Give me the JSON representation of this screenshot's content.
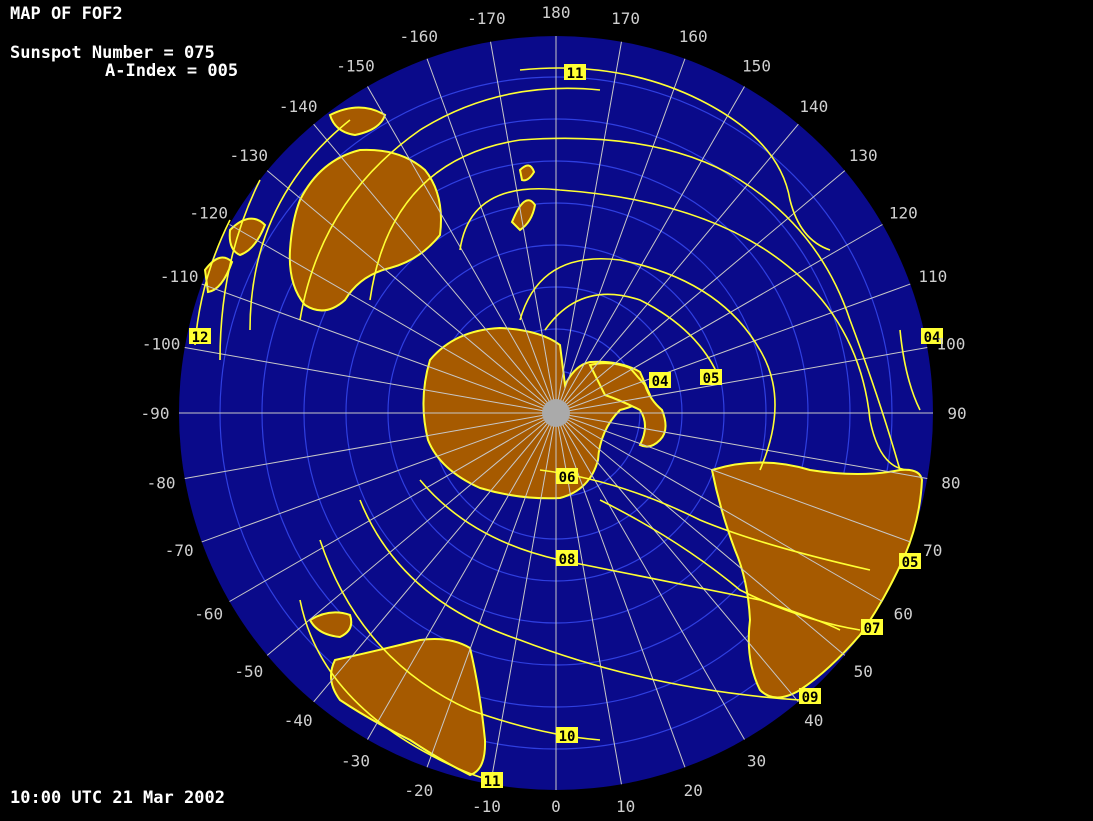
{
  "header": {
    "title": "MAP OF FOF2",
    "sunspot": "Sunspot Number = 075",
    "aindex": "A-Index = 005"
  },
  "timestamp": "10:00 UTC 21 Mar 2002",
  "colors": {
    "background": "#000000",
    "ocean": "#0a0a8a",
    "land": "#a65a00",
    "contour": "#ffff33",
    "grid": "#c8c8c8",
    "label_bg": "#ffff33"
  },
  "projection": "south-polar",
  "longitude_labels": [
    "180",
    "170",
    "160",
    "150",
    "140",
    "130",
    "120",
    "110",
    "100",
    "90",
    "80",
    "70",
    "60",
    "50",
    "40",
    "30",
    "20",
    "10",
    "0",
    "-10",
    "-20",
    "-30",
    "-40",
    "-50",
    "-60",
    "-70",
    "-80",
    "-90",
    "-100",
    "-110",
    "-120",
    "-130",
    "-140",
    "-150",
    "-160",
    "-170"
  ],
  "contour_labels": [
    "11",
    "12",
    "04",
    "04",
    "05",
    "06",
    "08",
    "05",
    "07",
    "09",
    "10",
    "11"
  ]
}
